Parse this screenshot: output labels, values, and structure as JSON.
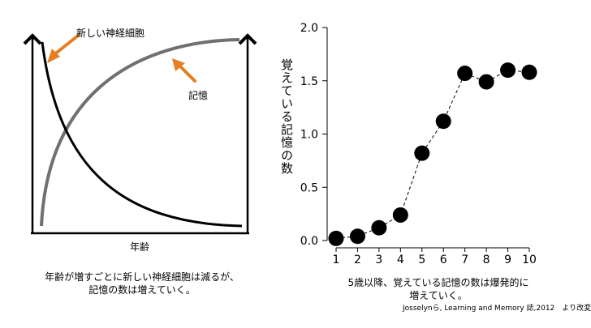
{
  "chart_data": [
    {
      "type": "line",
      "title": "",
      "xlabel": "年齢",
      "ylabel": "",
      "series": [
        {
          "name": "新しい神経細胞",
          "trend": "decreasing",
          "color": "#000000"
        },
        {
          "name": "記憶",
          "trend": "increasing",
          "color": "#707070"
        }
      ],
      "arrow_color": "#E67E22",
      "grid": false,
      "caption": [
        "年齢が増すごとに新しい神経細胞は減るが、",
        "記憶の数は増えていく。"
      ]
    },
    {
      "type": "line",
      "title": "",
      "xlabel": "",
      "ylabel": "覚えている記憶の数",
      "x": [
        1,
        2,
        3,
        4,
        5,
        6,
        7,
        8,
        9,
        10
      ],
      "series": [
        {
          "values": [
            0.02,
            0.04,
            0.12,
            0.24,
            0.82,
            1.12,
            1.57,
            1.49,
            1.6,
            1.58
          ],
          "marker": "circle",
          "line_style": "dashed",
          "color": "#000000"
        }
      ],
      "xlim": [
        1,
        10
      ],
      "ylim": [
        0.0,
        2.0
      ],
      "yticks": [
        "0.0",
        "0.5",
        "1.0",
        "1.5",
        "2.0"
      ],
      "xticks": [
        "1",
        "2",
        "3",
        "4",
        "5",
        "6",
        "7",
        "8",
        "9",
        "10"
      ],
      "grid": false,
      "caption": [
        "5歳以降、覚えている記憶の数は爆発的に",
        "増えていく。"
      ],
      "source": "Josselynら, Learning and Memory 誌,2012　より改変"
    }
  ]
}
